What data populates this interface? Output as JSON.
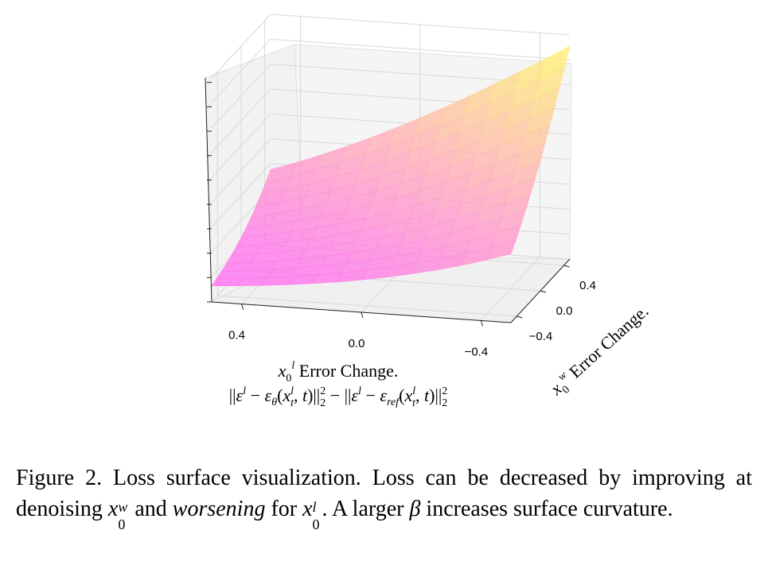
{
  "chart_data": {
    "type": "surface",
    "x_axis": {
      "label": "x_0^l Error Change.",
      "sublabel": "||ε^l − ε_θ(x_t^l, t)||_2^2 − ||ε^l − ε_ref(x_t^l, t)||_2^2",
      "ticks": [
        "0.4",
        "0.0",
        "−0.4"
      ],
      "range": [
        0.5,
        -0.5
      ]
    },
    "y_axis": {
      "label": "x_0^w Error Change.",
      "ticks": [
        "0.4",
        "0.0",
        "−0.4"
      ],
      "range": [
        -0.5,
        0.5
      ]
    },
    "z_axis": {
      "label": "",
      "ticks": [],
      "range": [
        0,
        1
      ]
    },
    "grid": true,
    "colormap": [
      "#ff66ff",
      "#ffff66"
    ],
    "surface_shape": "loss increases with x_0^w error change and decreases with x_0^l error change; convex, higher curvature at large x_0^w error and small x_0^l error"
  },
  "caption": {
    "lead": "Figure 2.  Loss surface visualization.  Loss can be decreased by improving at denoising ",
    "math1": "x",
    "math1_sub": "0",
    "math1_sup": "w",
    "mid": " and ",
    "emph": "worsening",
    "mid2": " for ",
    "math2": "x",
    "math2_sub": "0",
    "math2_sup": "l",
    "tail": ".  A larger ",
    "beta": "β",
    "end": " increases surface curvature."
  }
}
